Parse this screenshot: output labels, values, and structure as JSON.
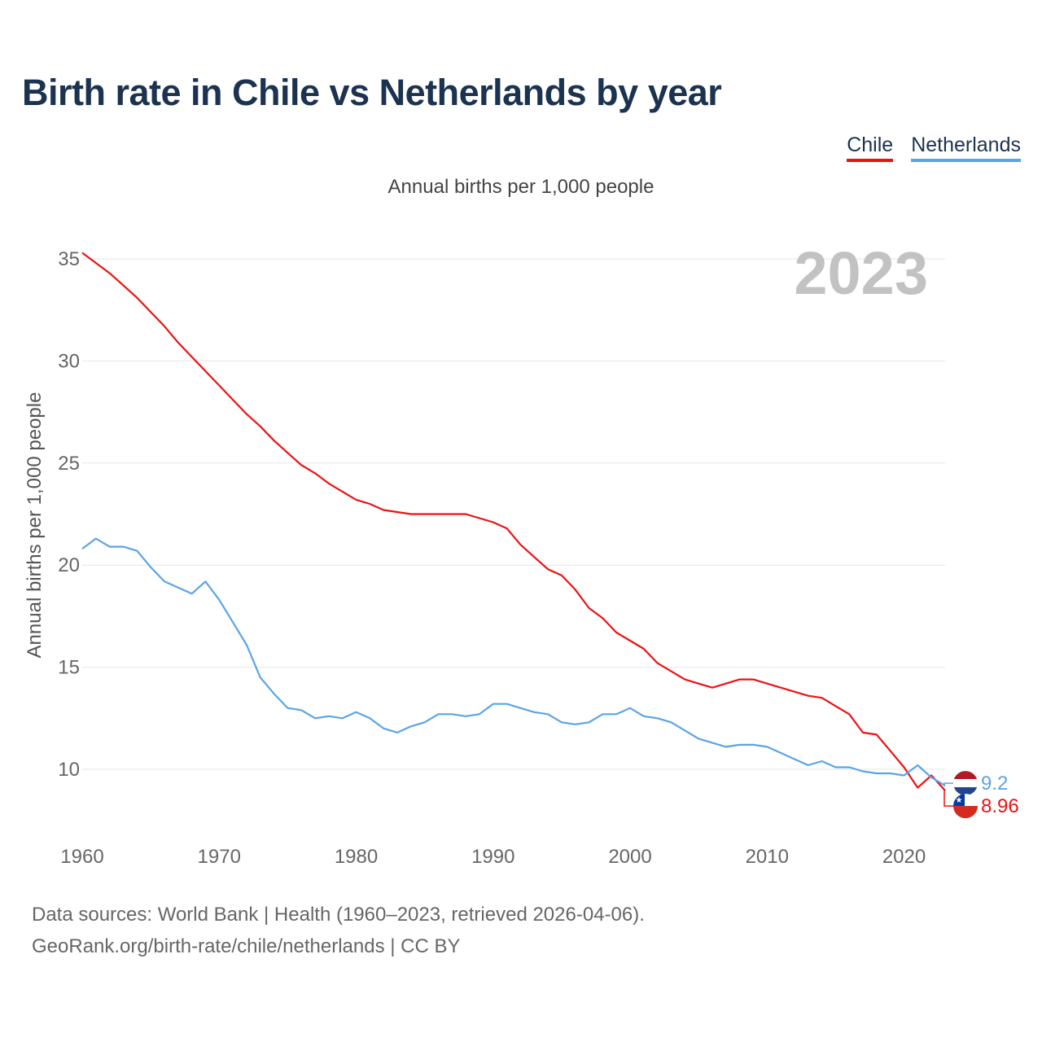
{
  "title": "Birth rate in Chile vs Netherlands by year",
  "legend": [
    {
      "label": "Chile",
      "color": "#ee1111"
    },
    {
      "label": "Netherlands",
      "color": "#5aa4e6"
    }
  ],
  "subtitle": "Annual births per 1,000 people",
  "source": {
    "line1": "Data sources: World Bank | Health (1960–2023, retrieved 2026-04-06).",
    "line2": "GeoRank.org/birth-rate/chile/netherlands | CC BY"
  },
  "chart_data": {
    "type": "line",
    "title": "Birth rate in Chile vs Netherlands by year",
    "xlabel": "",
    "ylabel": "Annual births per 1,000 people",
    "xlim": [
      1960,
      2023
    ],
    "ylim": [
      7.5,
      36
    ],
    "yticks": [
      10,
      15,
      20,
      25,
      30,
      35
    ],
    "xticks": [
      1960,
      1970,
      1980,
      1990,
      2000,
      2010,
      2020
    ],
    "grid": true,
    "year_label": "2023",
    "x": [
      1960,
      1961,
      1962,
      1963,
      1964,
      1965,
      1966,
      1967,
      1968,
      1969,
      1970,
      1971,
      1972,
      1973,
      1974,
      1975,
      1976,
      1977,
      1978,
      1979,
      1980,
      1981,
      1982,
      1983,
      1984,
      1985,
      1986,
      1987,
      1988,
      1989,
      1990,
      1991,
      1992,
      1993,
      1994,
      1995,
      1996,
      1997,
      1998,
      1999,
      2000,
      2001,
      2002,
      2003,
      2004,
      2005,
      2006,
      2007,
      2008,
      2009,
      2010,
      2011,
      2012,
      2013,
      2014,
      2015,
      2016,
      2017,
      2018,
      2019,
      2020,
      2021,
      2022,
      2023
    ],
    "series": [
      {
        "name": "Chile",
        "color": "#ee1111",
        "end_label": "8.96",
        "values": [
          35.3,
          34.8,
          34.3,
          33.7,
          33.1,
          32.4,
          31.7,
          30.9,
          30.2,
          29.5,
          28.8,
          28.1,
          27.4,
          26.8,
          26.1,
          25.5,
          24.9,
          24.5,
          24.0,
          23.6,
          23.2,
          23.0,
          22.7,
          22.6,
          22.5,
          22.5,
          22.5,
          22.5,
          22.5,
          22.3,
          22.1,
          21.8,
          21.0,
          20.4,
          19.8,
          19.5,
          18.8,
          17.9,
          17.4,
          16.7,
          16.3,
          15.9,
          15.2,
          14.8,
          14.4,
          14.2,
          14.0,
          14.2,
          14.4,
          14.4,
          14.2,
          14.0,
          13.8,
          13.6,
          13.5,
          13.1,
          12.7,
          11.8,
          11.7,
          10.9,
          10.1,
          9.1,
          9.7,
          8.96
        ]
      },
      {
        "name": "Netherlands",
        "color": "#5aa4e6",
        "end_label": "9.2",
        "values": [
          20.8,
          21.3,
          20.9,
          20.9,
          20.7,
          19.9,
          19.2,
          18.9,
          18.6,
          19.2,
          18.3,
          17.2,
          16.1,
          14.5,
          13.7,
          13.0,
          12.9,
          12.5,
          12.6,
          12.5,
          12.8,
          12.5,
          12.0,
          11.8,
          12.1,
          12.3,
          12.7,
          12.7,
          12.6,
          12.7,
          13.2,
          13.2,
          13.0,
          12.8,
          12.7,
          12.3,
          12.2,
          12.3,
          12.7,
          12.7,
          13.0,
          12.6,
          12.5,
          12.3,
          11.9,
          11.5,
          11.3,
          11.1,
          11.2,
          11.2,
          11.1,
          10.8,
          10.5,
          10.2,
          10.4,
          10.1,
          10.1,
          9.9,
          9.8,
          9.8,
          9.7,
          10.2,
          9.6,
          9.2
        ]
      }
    ]
  }
}
